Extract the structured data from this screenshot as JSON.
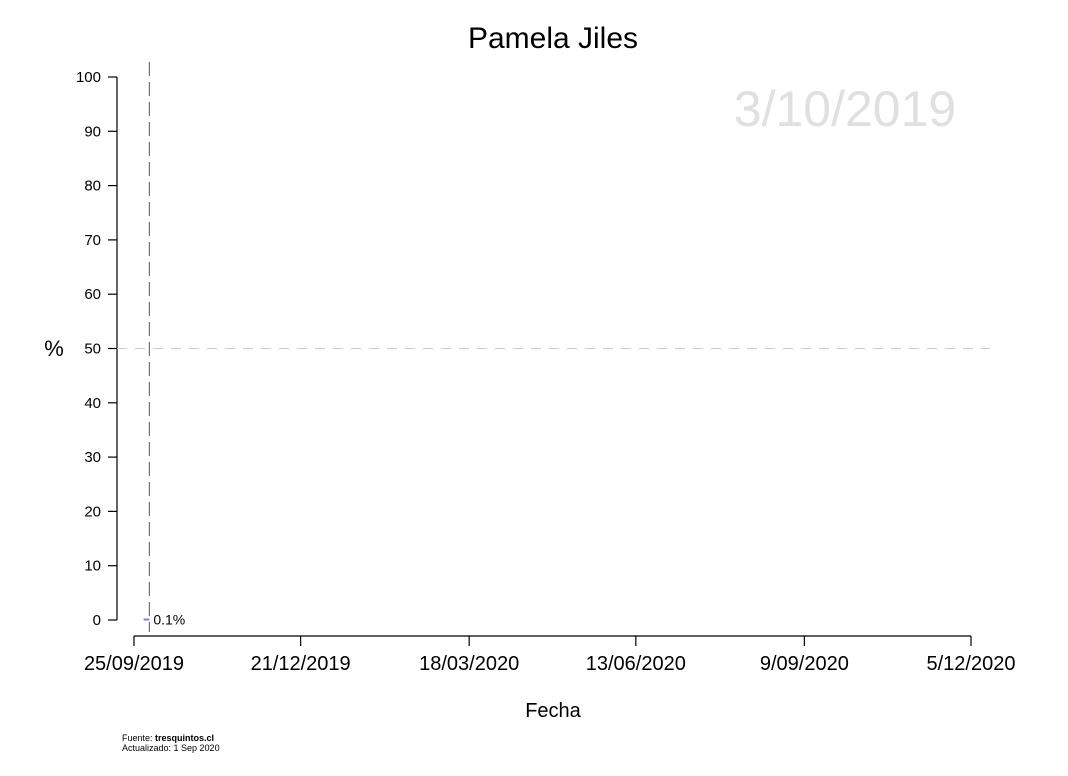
{
  "chart_data": {
    "type": "line",
    "title": "Pamela Jiles",
    "date_label": "3/10/2019",
    "xlabel": "Fecha",
    "ylabel": "%",
    "ylim": [
      0,
      100
    ],
    "yticks": [
      0,
      10,
      20,
      30,
      40,
      50,
      60,
      70,
      80,
      90,
      100
    ],
    "xlim": [
      "2019-09-25",
      "2020-12-05"
    ],
    "xticks": [
      {
        "date": "2019-09-25",
        "label": "25/09/2019"
      },
      {
        "date": "2019-12-21",
        "label": "21/12/2019"
      },
      {
        "date": "2020-03-18",
        "label": "18/03/2020"
      },
      {
        "date": "2020-06-13",
        "label": "13/06/2020"
      },
      {
        "date": "2020-09-09",
        "label": "9/09/2020"
      },
      {
        "date": "2020-12-05",
        "label": "5/12/2020"
      }
    ],
    "reference_hline": 50,
    "reference_vline": "2019-10-03",
    "series": [
      {
        "name": "Pamela Jiles",
        "color": "#8a7fc0",
        "points": [
          {
            "date": "2019-09-30",
            "value": 0.1
          },
          {
            "date": "2019-10-03",
            "value": 0.1
          }
        ],
        "end_label": "0.1%"
      }
    ]
  },
  "footer": {
    "source_prefix": "Fuente: ",
    "source_name": "tresquintos.cl",
    "updated": "Actualizado: 1 Sep 2020"
  }
}
